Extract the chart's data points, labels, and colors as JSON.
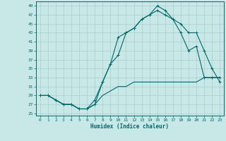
{
  "xlabel": "Humidex (Indice chaleur)",
  "xlim": [
    -0.5,
    23.5
  ],
  "ylim": [
    24.5,
    50
  ],
  "yticks": [
    25,
    27,
    29,
    31,
    33,
    35,
    37,
    39,
    41,
    43,
    45,
    47,
    49
  ],
  "xticks": [
    0,
    1,
    2,
    3,
    4,
    5,
    6,
    7,
    8,
    9,
    10,
    11,
    12,
    13,
    14,
    15,
    16,
    17,
    18,
    19,
    20,
    21,
    22,
    23
  ],
  "bg_color": "#c8e8e8",
  "line_color": "#006868",
  "grid_color": "#a8cccc",
  "line1_x": [
    0,
    1,
    2,
    3,
    4,
    5,
    6,
    7,
    8,
    9,
    10,
    11,
    12,
    13,
    14,
    15,
    16,
    17,
    18,
    19,
    20,
    21,
    22,
    23
  ],
  "line1_y": [
    29,
    29,
    28,
    27,
    27,
    26,
    26,
    28,
    32,
    36,
    42,
    43,
    44,
    46,
    47,
    48,
    47,
    46,
    43,
    39,
    40,
    33,
    33,
    33
  ],
  "line2_x": [
    0,
    1,
    2,
    3,
    4,
    5,
    6,
    7,
    8,
    9,
    10,
    11,
    12,
    13,
    14,
    15,
    16,
    17,
    18,
    19,
    20,
    21,
    22,
    23
  ],
  "line2_y": [
    29,
    29,
    28,
    27,
    27,
    26,
    26,
    27,
    32,
    36,
    38,
    43,
    44,
    46,
    47,
    49,
    48,
    46,
    45,
    43,
    43,
    39,
    35,
    32
  ],
  "line3_x": [
    0,
    1,
    2,
    3,
    4,
    5,
    6,
    7,
    8,
    9,
    10,
    11,
    12,
    13,
    14,
    15,
    16,
    17,
    18,
    19,
    20,
    21,
    22,
    23
  ],
  "line3_y": [
    29,
    29,
    28,
    27,
    27,
    26,
    26,
    27,
    29,
    30,
    31,
    31,
    32,
    32,
    32,
    32,
    32,
    32,
    32,
    32,
    32,
    33,
    33,
    33
  ]
}
